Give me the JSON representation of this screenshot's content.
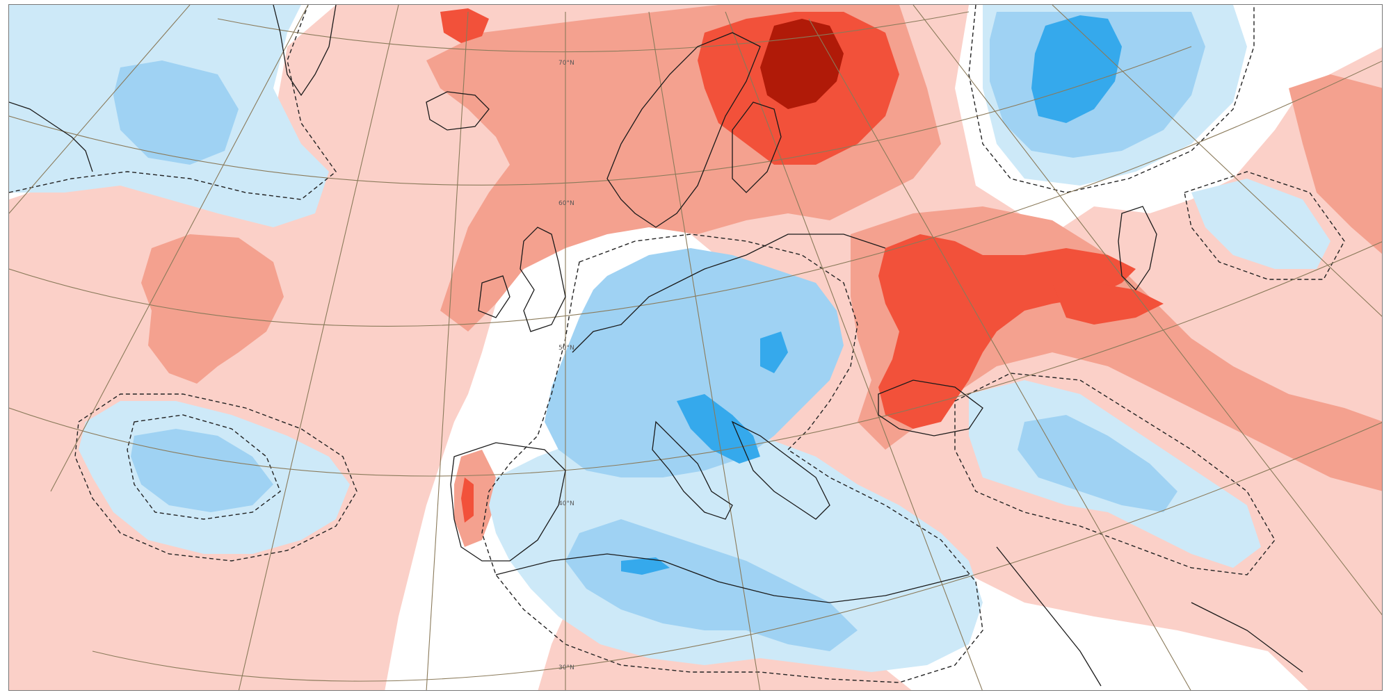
{
  "map": {
    "colors": {
      "background": "#ffffff",
      "warm_light": "#fbd0c8",
      "warm_medium": "#f4a18f",
      "warm_strong": "#f2513a",
      "warm_extreme": "#b01a08",
      "cool_light": "#cde9f8",
      "cool_medium": "#9fd2f3",
      "cool_strong": "#35a9ec",
      "coastline": "#1a1a1a",
      "graticule": "#8a7a5a",
      "contour": "#222222"
    },
    "latitude_labels": [
      "70°N",
      "60°N",
      "50°N",
      "40°N",
      "30°N"
    ],
    "anomaly_regions": [
      {
        "name": "north-atlantic-warm",
        "level": "warm-light"
      },
      {
        "name": "mid-atlantic-warm-core",
        "level": "warm-medium"
      },
      {
        "name": "scandinavia-warm",
        "level": "warm-medium"
      },
      {
        "name": "finland-karelia-warm",
        "level": "warm-strong"
      },
      {
        "name": "kola-peak-warm",
        "level": "warm-extreme"
      },
      {
        "name": "ukraine-russia-warm",
        "level": "warm-strong"
      },
      {
        "name": "greenland-labrador-cold",
        "level": "cool-light"
      },
      {
        "name": "central-europe-cold",
        "level": "cool-medium"
      },
      {
        "name": "mediterranean-cold",
        "level": "cool-light"
      },
      {
        "name": "azores-cold",
        "level": "cool-light"
      },
      {
        "name": "siberia-cold",
        "level": "cool-medium"
      },
      {
        "name": "siberia-cold-core",
        "level": "cool-strong"
      },
      {
        "name": "middle-east-cold",
        "level": "cool-medium"
      },
      {
        "name": "adriatic-cold-core",
        "level": "cool-strong"
      }
    ]
  }
}
